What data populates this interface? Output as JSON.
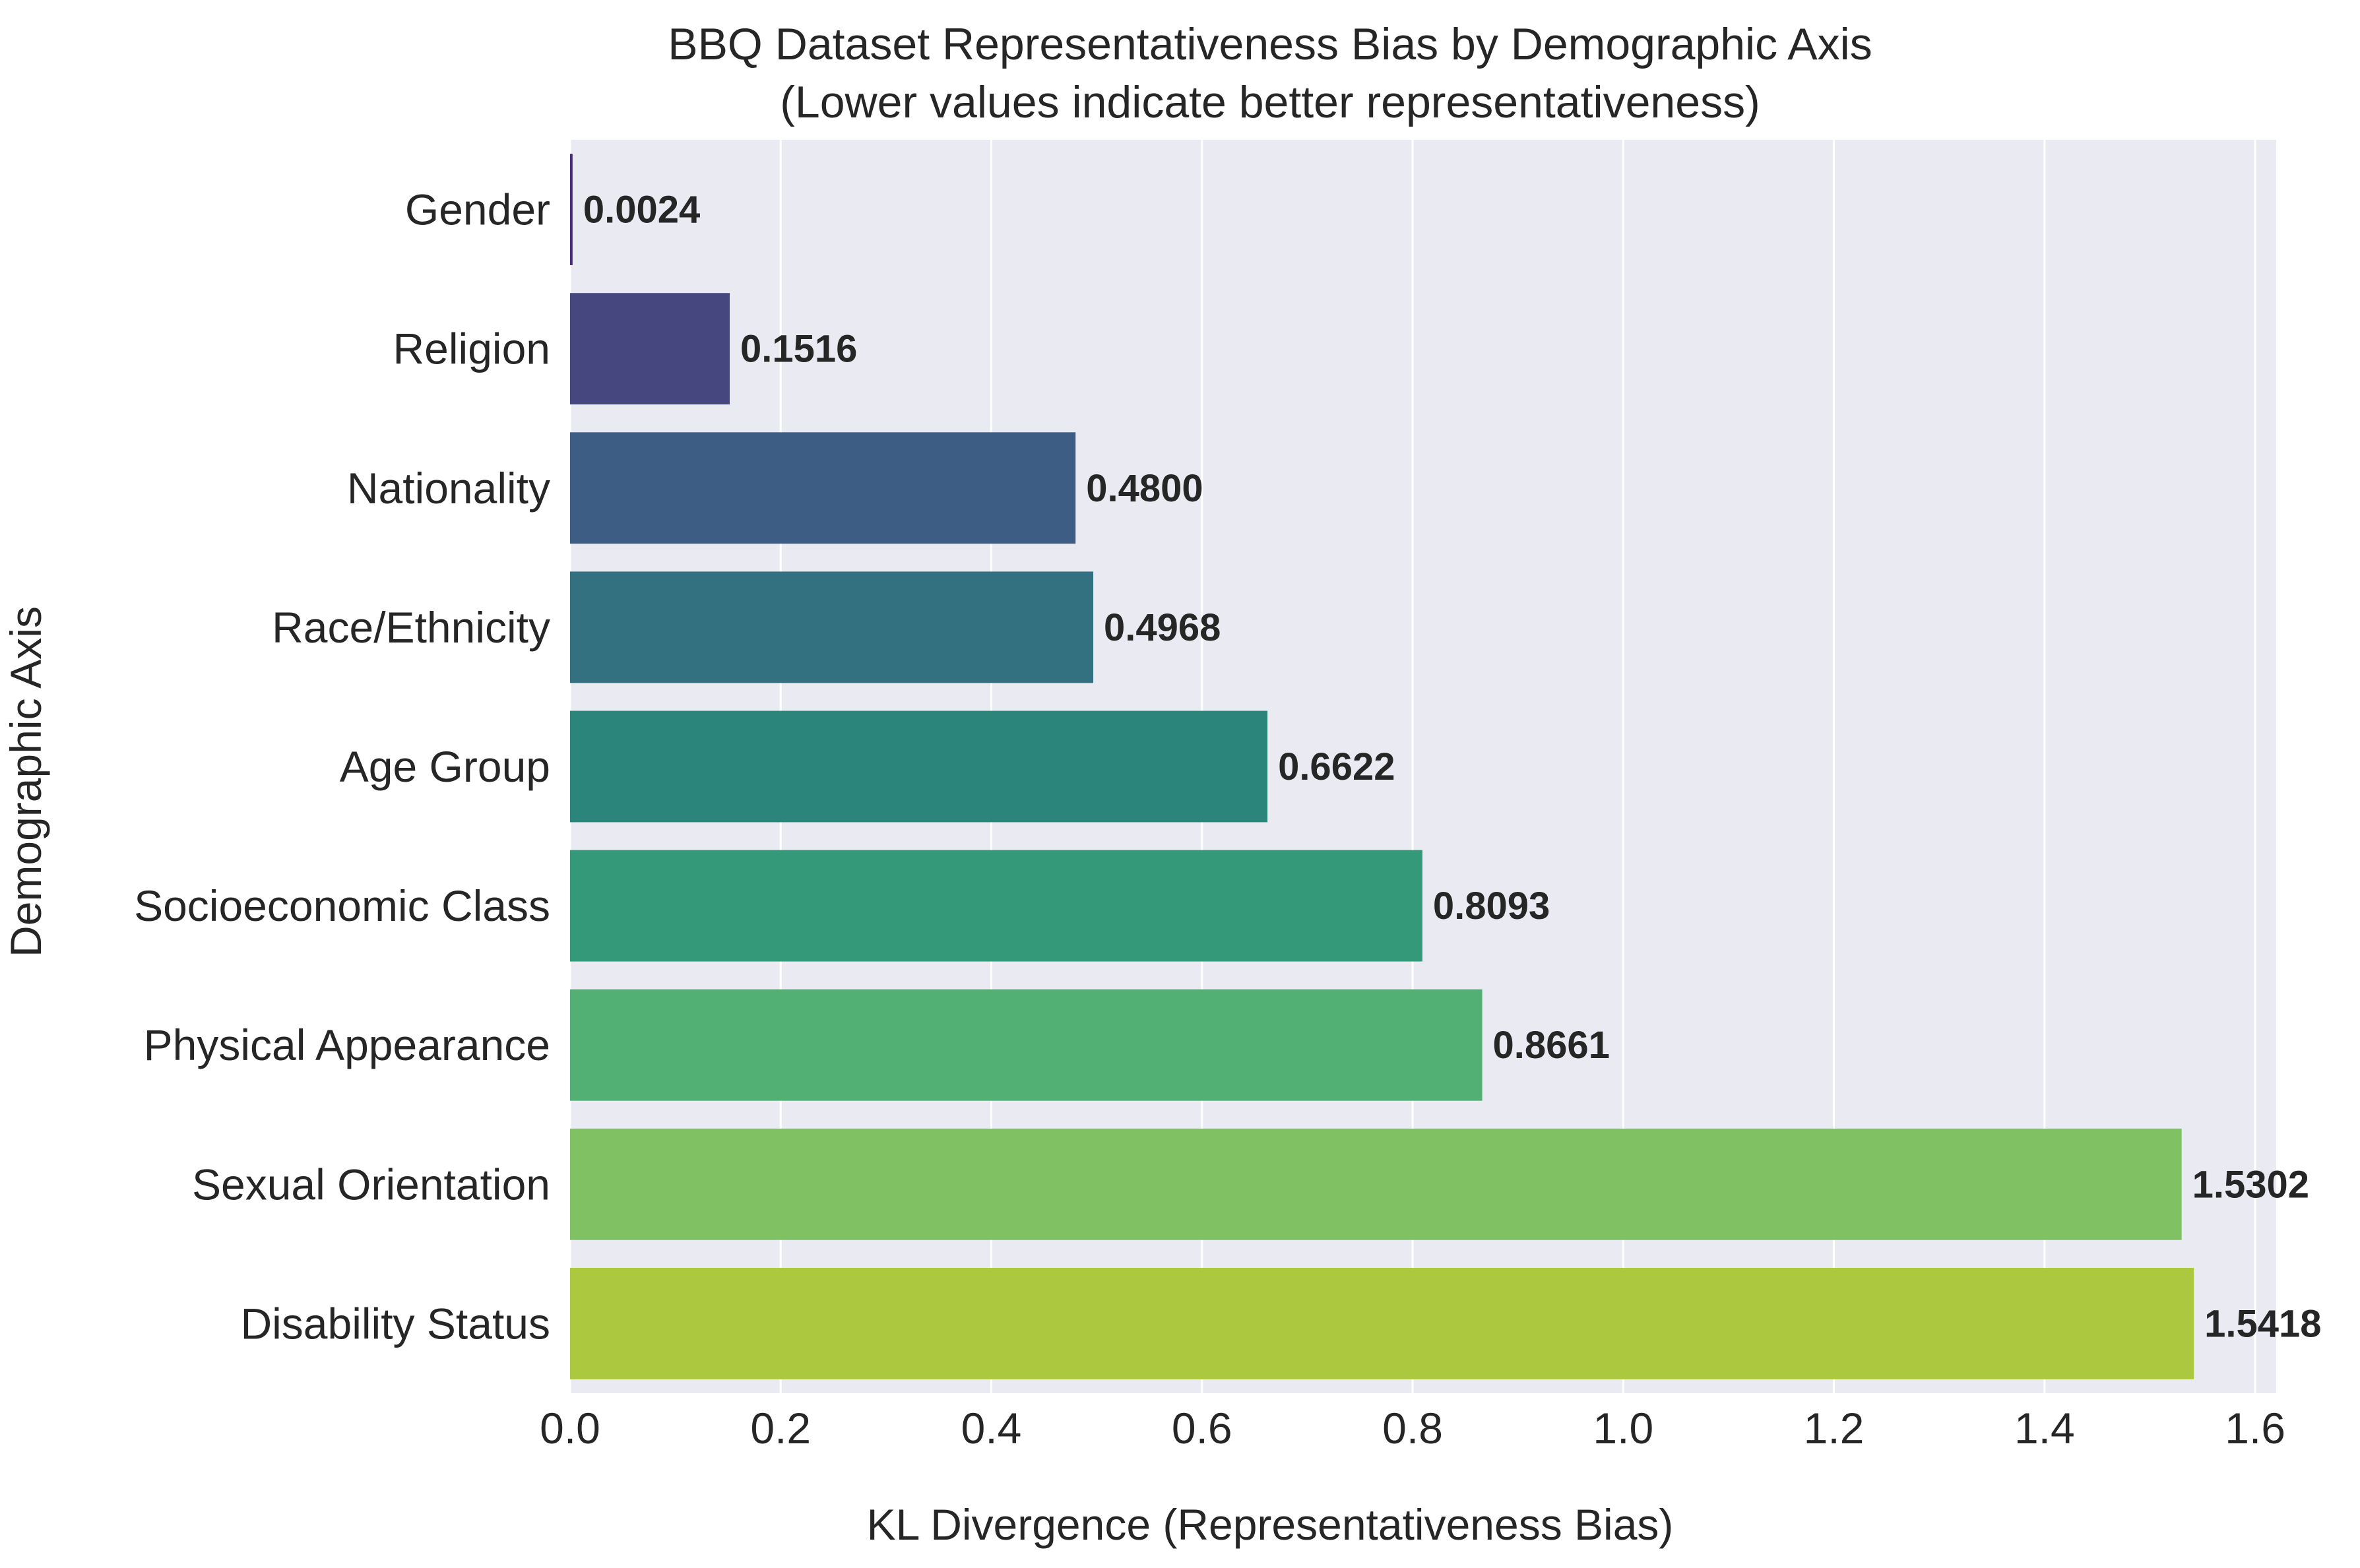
{
  "chart_data": {
    "type": "bar",
    "orientation": "horizontal",
    "title": "BBQ Dataset Representativeness Bias by Demographic Axis",
    "subtitle": "(Lower values indicate better representativeness)",
    "xlabel": "KL Divergence (Representativeness Bias)",
    "ylabel": "Demographic Axis",
    "xlim": [
      0,
      1.62
    ],
    "xticks": [
      0.0,
      0.2,
      0.4,
      0.6,
      0.8,
      1.0,
      1.2,
      1.4,
      1.6
    ],
    "xtick_labels": [
      "0.0",
      "0.2",
      "0.4",
      "0.6",
      "0.8",
      "1.0",
      "1.2",
      "1.4",
      "1.6"
    ],
    "grid": "vertical",
    "categories": [
      "Gender",
      "Religion",
      "Nationality",
      "Race/Ethnicity",
      "Age Group",
      "Socioeconomic Class",
      "Physical Appearance",
      "Sexual Orientation",
      "Disability Status"
    ],
    "values": [
      0.0024,
      0.1516,
      0.48,
      0.4968,
      0.6622,
      0.8093,
      0.8661,
      1.5302,
      1.5418
    ],
    "value_labels": [
      "0.0024",
      "0.1516",
      "0.4800",
      "0.4968",
      "0.6622",
      "0.8093",
      "0.8661",
      "1.5302",
      "1.5418"
    ],
    "colors": [
      "#472d7b",
      "#46477f",
      "#3e5d85",
      "#337180",
      "#2b857b",
      "#349979",
      "#52b074",
      "#80c263",
      "#abc83e"
    ],
    "plot_background": "#eaeaf2",
    "grid_color": "#ffffff"
  }
}
